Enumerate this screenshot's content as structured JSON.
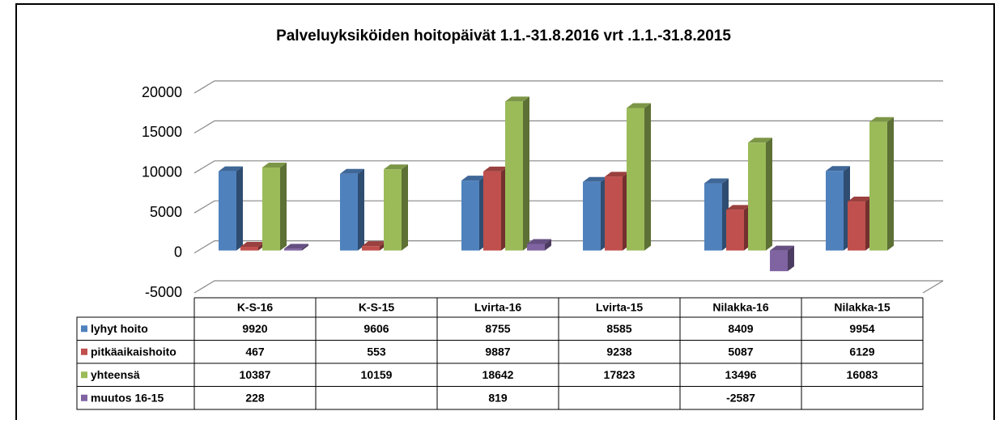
{
  "chart_data": {
    "type": "bar",
    "title": "Palveluyksiköiden  hoitopäivät 1.1.-31.8.2016 vrt .1.1.-31.8.2015",
    "categories": [
      "K-S-16",
      "K-S-15",
      "Lvirta-16",
      "Lvirta-15",
      "Nilakka-16",
      "Nilakka-15"
    ],
    "series": [
      {
        "name": "lyhyt hoito",
        "color": "#4f81bd",
        "values": [
          9920,
          9606,
          8755,
          8585,
          8409,
          9954
        ]
      },
      {
        "name": "pitkäaikaishoito",
        "color": "#c0504d",
        "values": [
          467,
          553,
          9887,
          9238,
          5087,
          6129
        ]
      },
      {
        "name": "yhteensä",
        "color": "#9bbb59",
        "values": [
          10387,
          10159,
          18642,
          17823,
          13496,
          16083
        ]
      },
      {
        "name": "muutos 16-15",
        "color": "#8064a2",
        "values": [
          228,
          null,
          819,
          null,
          -2587,
          null
        ]
      }
    ],
    "ylim": [
      -5000,
      20000
    ],
    "yticks": [
      -5000,
      0,
      5000,
      10000,
      15000,
      20000
    ],
    "grid": true,
    "data_table": true
  }
}
